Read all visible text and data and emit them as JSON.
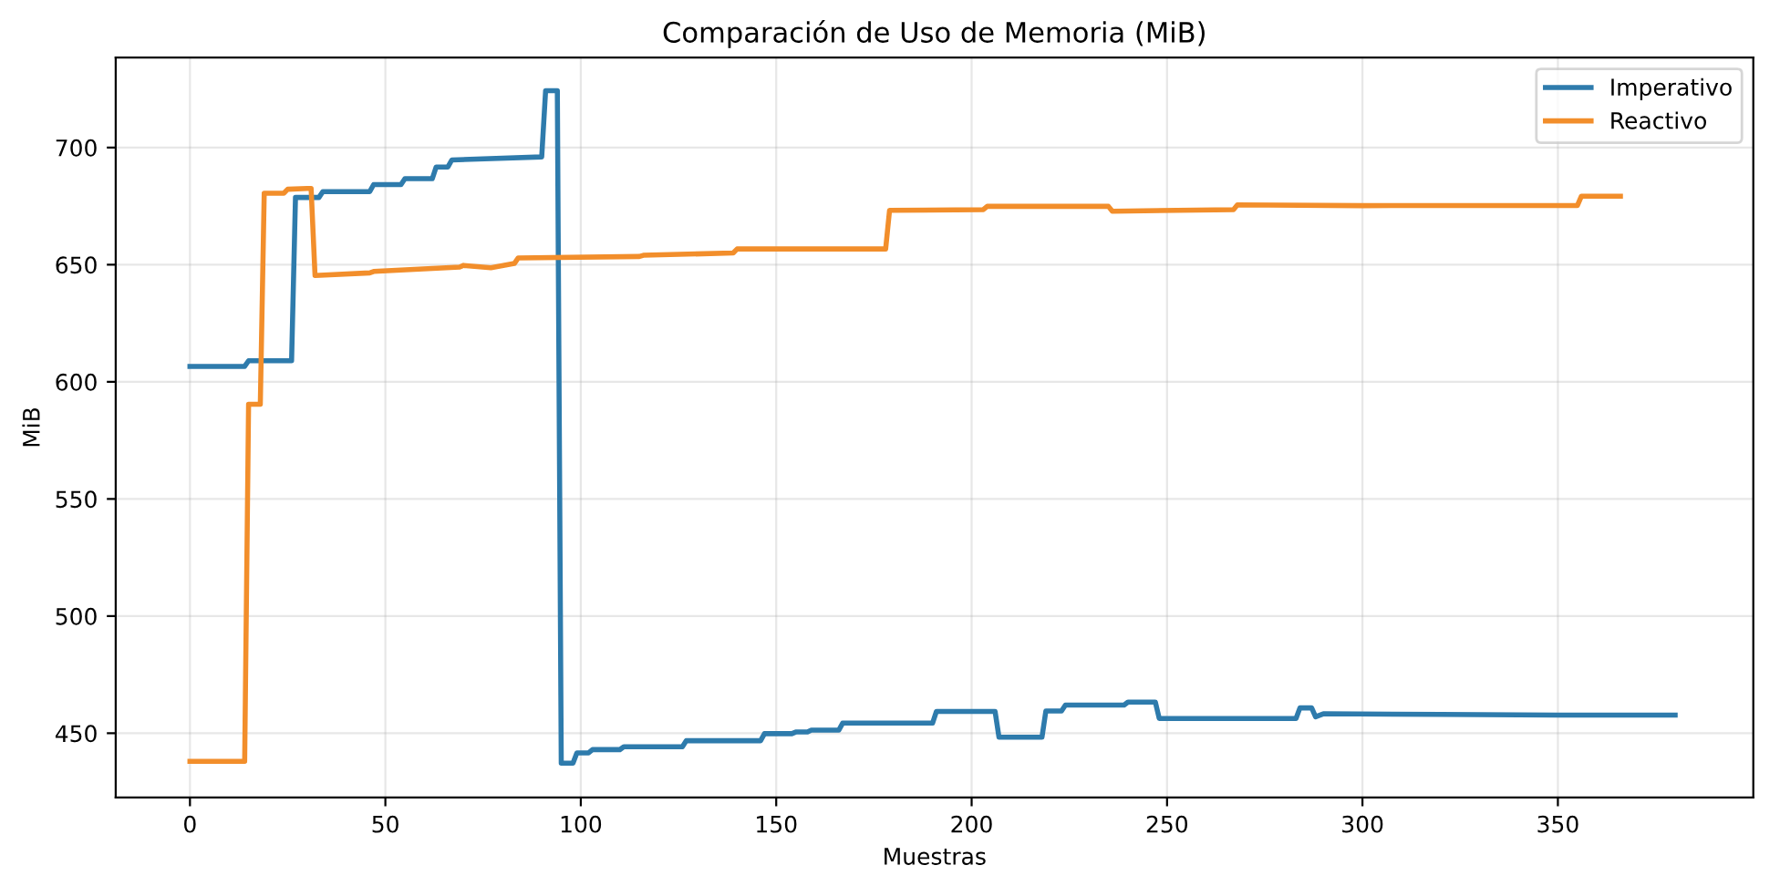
{
  "chart_data": {
    "type": "line",
    "title": "Comparación de Uso de Memoria (MiB)",
    "xlabel": "Muestras",
    "ylabel": "MiB",
    "xlim": [
      -19,
      400
    ],
    "ylim": [
      422.6,
      738.4
    ],
    "xticks": [
      0,
      50,
      100,
      150,
      200,
      250,
      300,
      350
    ],
    "yticks": [
      450,
      500,
      550,
      600,
      650,
      700
    ],
    "grid": true,
    "legend": "top right",
    "line_style": "solid",
    "marker": "none",
    "series": [
      {
        "name": "Imperativo",
        "color": "#2e7bac",
        "x": [
          0,
          14,
          15,
          26,
          27,
          33,
          34,
          46,
          47,
          54,
          55,
          62,
          63,
          66,
          67,
          90,
          91,
          94,
          95,
          98,
          99,
          102,
          103,
          110,
          111,
          126,
          127,
          146,
          147,
          154,
          155,
          158,
          159,
          166,
          167,
          190,
          191,
          206,
          207,
          218,
          219,
          223,
          224,
          239,
          240,
          247,
          248,
          283,
          284,
          287,
          288,
          290,
          320,
          350,
          380
        ],
        "values": [
          606.6,
          606.6,
          609,
          609,
          678.7,
          678.7,
          681.2,
          681.2,
          684.2,
          684.2,
          686.7,
          686.7,
          691.7,
          691.7,
          694.7,
          696,
          724.3,
          724.3,
          437.2,
          437.2,
          441.6,
          441.6,
          443,
          443,
          444.2,
          444.2,
          446.8,
          446.8,
          449.8,
          449.8,
          450.5,
          450.5,
          451.3,
          451.3,
          454.3,
          454.3,
          459.3,
          459.3,
          448.3,
          448.3,
          459.5,
          459.5,
          462,
          462,
          463.3,
          463.3,
          456.3,
          456.3,
          460.8,
          460.8,
          457,
          458.3,
          458,
          457.7,
          457.7
        ]
      },
      {
        "name": "Reactivo",
        "color": "#f28e2b",
        "x": [
          0,
          14,
          15,
          18,
          19,
          24,
          25,
          30,
          31,
          32,
          46,
          47,
          69,
          70,
          77,
          83,
          84,
          115,
          116,
          139,
          140,
          178,
          179,
          203,
          204,
          235,
          236,
          267,
          268,
          300,
          355,
          356,
          366
        ],
        "values": [
          438,
          438,
          590.4,
          590.4,
          680.5,
          680.5,
          682.2,
          682.5,
          682.5,
          645.4,
          646.5,
          647.1,
          649,
          649.7,
          648.7,
          650.5,
          652.9,
          653.5,
          654,
          655,
          656.7,
          656.7,
          673.2,
          673.5,
          674.9,
          674.9,
          672.8,
          673.5,
          675.5,
          675.2,
          675.3,
          679.2,
          679.2
        ]
      }
    ]
  }
}
